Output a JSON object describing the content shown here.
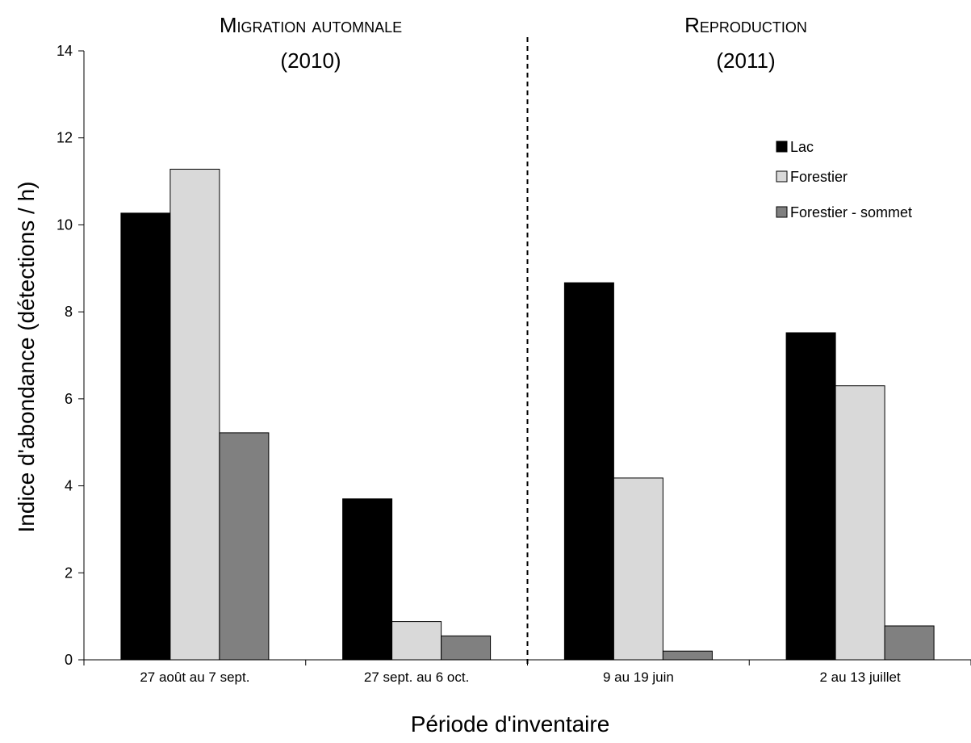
{
  "chart_data": {
    "type": "bar",
    "categories": [
      "27 août au 7 sept.",
      "27 sept. au 6 oct.",
      "9 au 19 juin",
      "2 au 13 juillet"
    ],
    "series": [
      {
        "name": "Lac",
        "values": [
          10.27,
          3.7,
          8.67,
          7.52
        ],
        "color": "#000000"
      },
      {
        "name": "Forestier",
        "values": [
          11.28,
          0.88,
          4.18,
          6.3
        ],
        "color": "#d9d9d9"
      },
      {
        "name": "Forestier - sommet",
        "values": [
          5.22,
          0.55,
          0.2,
          0.78
        ],
        "color": "#808080"
      }
    ],
    "xlabel": "Période d'inventaire",
    "ylabel": "Indice d'abondance (détections / h)",
    "ylim": [
      0,
      14
    ],
    "yticks": [
      0,
      2,
      4,
      6,
      8,
      10,
      12,
      14
    ],
    "grid": false,
    "legend_position": "top-right",
    "sections": [
      {
        "title_line1": "Migration automnale",
        "title_line2": "(2010)"
      },
      {
        "title_line1": "Reproduction",
        "title_line2": "(2011)"
      }
    ],
    "divider": "dashed line between 2nd and 3rd category"
  }
}
